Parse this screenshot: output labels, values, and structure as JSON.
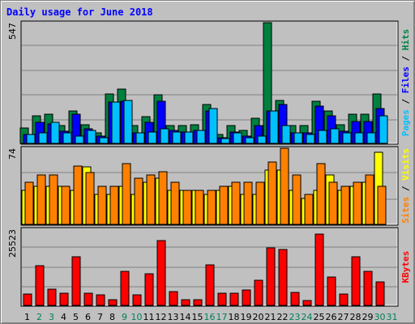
{
  "title": "Daily usage for June 2018",
  "colors": {
    "hits": "#008040",
    "files": "#0000ff",
    "pages": "#00c0ff",
    "visits": "#ffff00",
    "sites": "#ff8000",
    "kbytes": "#ff0000",
    "weekday_label": "#000000",
    "weekend_label": "#00805c",
    "title": "#0000ff"
  },
  "right_labels": {
    "top": [
      {
        "text": "Pages",
        "color": "#00c0ff"
      },
      {
        "text": " / ",
        "color": "#000000"
      },
      {
        "text": "Files",
        "color": "#0000ff"
      },
      {
        "text": " / ",
        "color": "#000000"
      },
      {
        "text": "Hits",
        "color": "#008040"
      }
    ],
    "mid": [
      {
        "text": "Sites",
        "color": "#ff8000"
      },
      {
        "text": " / ",
        "color": "#000000"
      },
      {
        "text": "Visits",
        "color": "#ffff00"
      }
    ],
    "bot": [
      {
        "text": "KBytes",
        "color": "#ff0000"
      }
    ]
  },
  "chart_data": [
    {
      "type": "bar",
      "panel": "hits-files-pages",
      "ymax_label": "547",
      "ylim": [
        0,
        547
      ],
      "categories": [
        "1",
        "2",
        "3",
        "4",
        "5",
        "6",
        "7",
        "8",
        "9",
        "10",
        "11",
        "12",
        "13",
        "14",
        "15",
        "16",
        "17",
        "18",
        "19",
        "20",
        "21",
        "22",
        "23",
        "24",
        "25",
        "26",
        "27",
        "28",
        "29",
        "30",
        "31"
      ],
      "weekend_days": [
        "2",
        "3",
        "9",
        "10",
        "16",
        "17",
        "23",
        "24",
        "30",
        "31"
      ],
      "series": [
        {
          "name": "Hits",
          "values": [
            71,
            126,
            132,
            81,
            148,
            86,
            47,
            225,
            246,
            79,
            122,
            221,
            79,
            79,
            86,
            178,
            41,
            79,
            59,
            112,
            547,
            195,
            79,
            79,
            190,
            146,
            86,
            132,
            132,
            225,
            0
          ]
        },
        {
          "name": "Files",
          "values": [
            39,
            96,
            89,
            56,
            132,
            66,
            33,
            186,
            190,
            46,
            96,
            190,
            59,
            52,
            59,
            148,
            26,
            52,
            33,
            79,
            148,
            176,
            46,
            46,
            170,
            126,
            56,
            99,
            99,
            158,
            0
          ]
        },
        {
          "name": "Pages",
          "values": [
            39,
            46,
            96,
            46,
            33,
            59,
            26,
            186,
            193,
            46,
            52,
            66,
            52,
            52,
            59,
            158,
            23,
            46,
            26,
            33,
            148,
            79,
            46,
            39,
            59,
            66,
            46,
            46,
            46,
            126,
            0
          ]
        }
      ]
    },
    {
      "type": "bar",
      "panel": "sites-visits",
      "ymax_label": "74",
      "ylim": [
        0,
        74
      ],
      "categories": [
        "1",
        "2",
        "3",
        "4",
        "5",
        "6",
        "7",
        "8",
        "9",
        "10",
        "11",
        "12",
        "13",
        "14",
        "15",
        "16",
        "17",
        "18",
        "19",
        "20",
        "21",
        "22",
        "23",
        "24",
        "25",
        "26",
        "27",
        "28",
        "29",
        "30",
        "31"
      ],
      "series": [
        {
          "name": "Visits",
          "values": [
            33,
            37,
            37,
            37,
            33,
            56,
            29,
            29,
            37,
            29,
            41,
            45,
            33,
            33,
            33,
            29,
            33,
            37,
            29,
            29,
            53,
            53,
            33,
            25,
            33,
            48,
            33,
            37,
            41,
            70,
            0
          ]
        },
        {
          "name": "Sites",
          "values": [
            41,
            48,
            48,
            37,
            57,
            50,
            37,
            37,
            59,
            45,
            48,
            51,
            41,
            33,
            33,
            33,
            37,
            41,
            41,
            41,
            61,
            74,
            48,
            29,
            59,
            41,
            37,
            41,
            48,
            37,
            0
          ]
        }
      ]
    },
    {
      "type": "bar",
      "panel": "kbytes",
      "ymax_label": "25523",
      "ylim": [
        0,
        25523
      ],
      "categories": [
        "1",
        "2",
        "3",
        "4",
        "5",
        "6",
        "7",
        "8",
        "9",
        "10",
        "11",
        "12",
        "13",
        "14",
        "15",
        "16",
        "17",
        "18",
        "19",
        "20",
        "21",
        "22",
        "23",
        "24",
        "25",
        "26",
        "27",
        "28",
        "29",
        "30",
        "31"
      ],
      "series": [
        {
          "name": "KBytes",
          "values": [
            3900,
            13400,
            5500,
            4000,
            16200,
            4200,
            3600,
            2000,
            11500,
            3600,
            10500,
            21800,
            4600,
            1900,
            1900,
            13600,
            4000,
            4200,
            5200,
            8400,
            19300,
            18600,
            4300,
            1600,
            24000,
            9500,
            3900,
            16200,
            11500,
            8000,
            0
          ]
        }
      ]
    }
  ]
}
